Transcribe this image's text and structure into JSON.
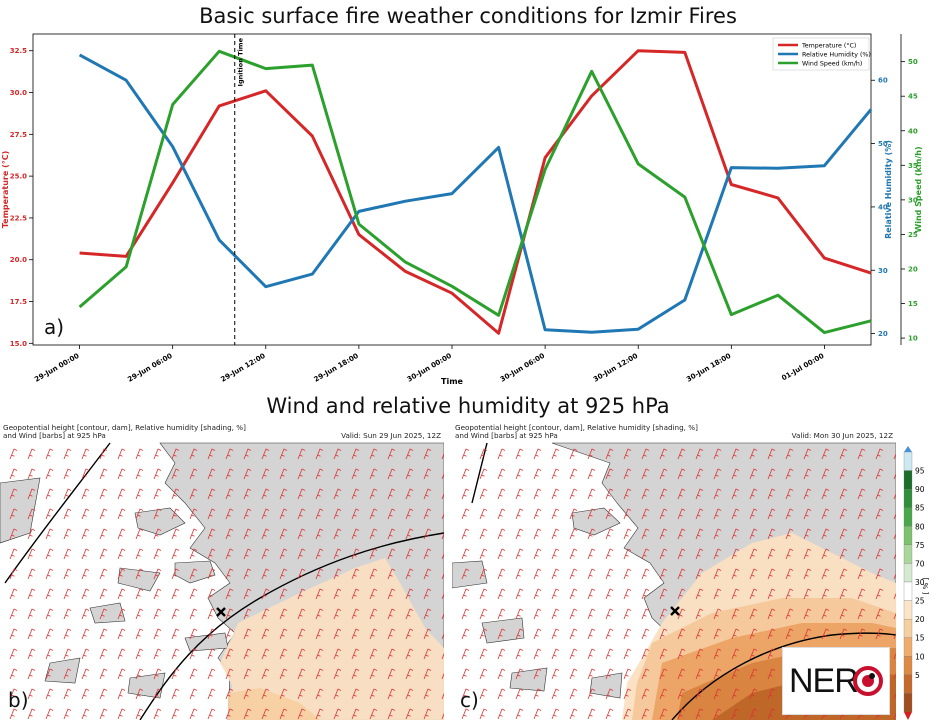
{
  "titles": {
    "top": "Basic surface fire weather conditions for Izmir Fires",
    "bottom": "Wind and relative humidity at 925 hPa"
  },
  "chart_data": {
    "type": "line",
    "panel_label": "a)",
    "xlabel": "Time",
    "x_ticks": [
      "29-Jun 00:00",
      "29-Jun 06:00",
      "29-Jun 12:00",
      "29-Jun 18:00",
      "30-Jun 00:00",
      "30-Jun 06:00",
      "30-Jun 12:00",
      "30-Jun 18:00",
      "01-Jul 00:00"
    ],
    "x_hours": [
      0,
      3,
      6,
      9,
      12,
      15,
      18,
      21,
      24,
      27,
      30,
      33,
      36,
      39,
      42,
      45,
      48
    ],
    "x_range_hours": [
      -3,
      51
    ],
    "annotation": {
      "label": "Ignition Time",
      "x_hour": 10
    },
    "series": [
      {
        "name": "Temperature (°C)",
        "color": "#d62728",
        "axis": "left",
        "ylabel": "Temperature (°C)",
        "ylim": [
          14.9,
          33.5
        ],
        "ticks": [
          "15.0",
          "17.5",
          "20.0",
          "22.5",
          "25.0",
          "27.5",
          "30.0",
          "32.5"
        ],
        "values": [
          20.4,
          20.2,
          24.6,
          29.2,
          30.1,
          27.4,
          21.5,
          19.3,
          18.0,
          15.6,
          26.1,
          29.8,
          32.5,
          32.4,
          24.5,
          23.7,
          20.1,
          19.2
        ]
      },
      {
        "name": "Relative Humidity (%)",
        "color": "#1f77b4",
        "axis": "right1",
        "ylabel": "Relative Humidity (%)",
        "ylim": [
          18.2,
          67.3
        ],
        "ticks": [
          "20",
          "30",
          "40",
          "50",
          "60"
        ],
        "values": [
          64.0,
          60.0,
          49.5,
          34.8,
          27.4,
          29.4,
          39.3,
          40.9,
          42.1,
          49.4,
          20.6,
          20.2,
          20.7,
          25.3,
          46.2,
          46.1,
          46.5,
          55.4
        ]
      },
      {
        "name": "Wind Speed (km/h)",
        "color": "#2ca02c",
        "axis": "right2",
        "ylabel": "Wind Speed (km/h)",
        "ylim": [
          9.0,
          54.0
        ],
        "ticks": [
          "10",
          "15",
          "20",
          "25",
          "30",
          "35",
          "40",
          "45",
          "50"
        ],
        "values": [
          14.5,
          20.3,
          43.8,
          51.5,
          49.0,
          49.5,
          26.5,
          21.0,
          17.5,
          13.3,
          34.4,
          48.6,
          35.2,
          30.4,
          13.4,
          16.2,
          10.8,
          12.5
        ]
      }
    ],
    "x_values_hours": [
      0,
      3,
      6,
      9,
      12,
      15,
      18,
      21,
      24,
      27,
      30,
      33,
      36,
      39,
      42,
      45,
      48,
      51
    ]
  },
  "maps": [
    {
      "id": "b",
      "panel_label": "b)",
      "header": "Geopotential height [contour, dam], Relative humidity [shading, %]",
      "header2": "and Wind [barbs] at 925 hPa",
      "valid": "Valid: Sun 29 Jun 2025, 12Z"
    },
    {
      "id": "c",
      "panel_label": "c)",
      "header": "Geopotential height [contour, dam], Relative humidity [shading, %]",
      "header2": "and Wind [barbs] at 925 hPa",
      "valid": "Valid: Mon 30 Jun 2025, 12Z"
    }
  ],
  "colorbar": {
    "unit": "[ % ]",
    "ticks": [
      "95",
      "90",
      "85",
      "80",
      "75",
      "70",
      "30",
      "25",
      "20",
      "15",
      "10",
      "5"
    ],
    "colors": [
      "#cce8f0",
      "#1c6e2a",
      "#2f8f3a",
      "#4aa84b",
      "#7cc26f",
      "#a8d69b",
      "#d3ead0",
      "#ffffff",
      "#fbe5c8",
      "#f6cfa0",
      "#eeab6a",
      "#df8a44",
      "#c56a2a",
      "#a04e1e"
    ]
  },
  "logo": {
    "text": "NER"
  }
}
